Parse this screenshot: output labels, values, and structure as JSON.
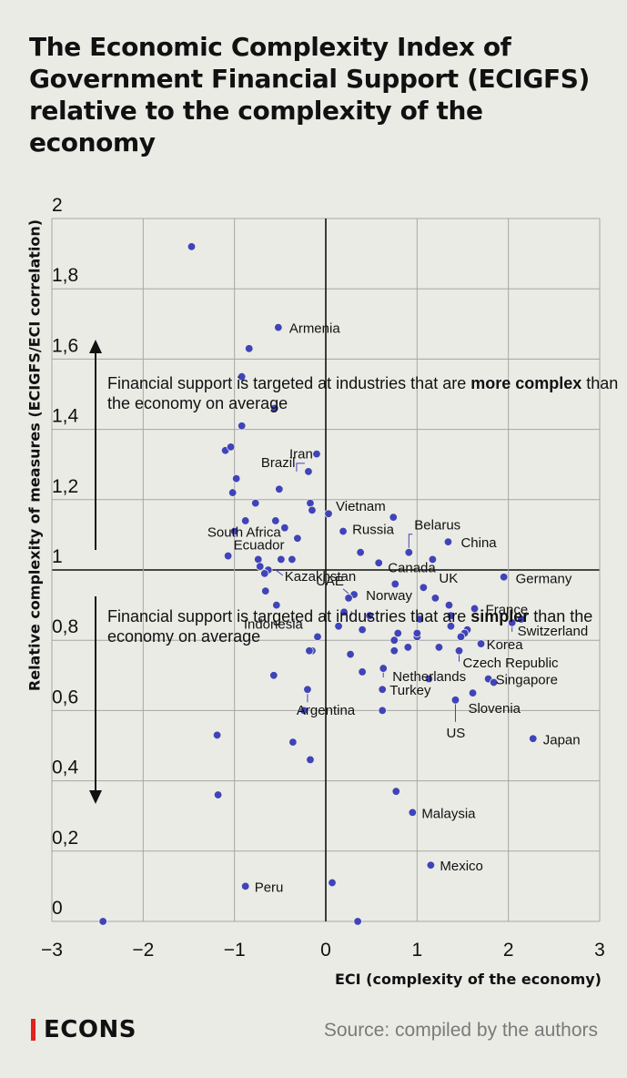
{
  "title": "The Economic Complexity Index of Government Financial Support (ECIGFS) relative to the complexity of the economy",
  "annotations": {
    "upper": {
      "before": "Financial support is targeted at industries that are ",
      "bold": "more complex",
      "after": " than the economy on average"
    },
    "lower": {
      "before": "Financial support is targeted at industries that are ",
      "bold": "simpler",
      "after": " than the economy on average"
    }
  },
  "brand": {
    "name": "ECONS",
    "accent_color": "#e2221c"
  },
  "source": "Source: compiled by the authors",
  "chart_data": {
    "type": "scatter",
    "xlabel": "ECI (complexity of the economy)",
    "ylabel": "Relative complexity of measures (ECIGFS/ECI correlation)",
    "xlim": [
      -3,
      3
    ],
    "ylim": [
      0,
      2
    ],
    "xticks": [
      -3,
      -2,
      -1,
      0,
      1,
      2,
      3
    ],
    "xtick_labels": [
      "−3",
      "−2",
      "−1",
      "0",
      "1",
      "2",
      "3"
    ],
    "yticks": [
      0,
      0.2,
      0.4,
      0.6,
      0.8,
      1,
      1.2,
      1.4,
      1.6,
      1.8,
      2
    ],
    "ytick_labels": [
      "0",
      "0,2",
      "0,4",
      "0,6",
      "0,8",
      "1",
      "1,2",
      "1,4",
      "1,6",
      "1,8",
      "2"
    ],
    "reference_lines": {
      "x": 0,
      "y": 1
    },
    "grid": true,
    "point_color": "#3f44b8",
    "points": [
      {
        "x": -1.47,
        "y": 1.92
      },
      {
        "x": -0.52,
        "y": 1.69,
        "label": "Armenia"
      },
      {
        "x": -0.84,
        "y": 1.63
      },
      {
        "x": -0.92,
        "y": 1.55
      },
      {
        "x": -0.56,
        "y": 1.46
      },
      {
        "x": -0.92,
        "y": 1.41
      },
      {
        "x": -1.1,
        "y": 1.34
      },
      {
        "x": -1.04,
        "y": 1.35
      },
      {
        "x": -0.1,
        "y": 1.33,
        "label": "Iran"
      },
      {
        "x": -0.19,
        "y": 1.28,
        "label": "Brazil"
      },
      {
        "x": -0.98,
        "y": 1.26
      },
      {
        "x": -0.51,
        "y": 1.23
      },
      {
        "x": -1.02,
        "y": 1.22
      },
      {
        "x": -0.77,
        "y": 1.19
      },
      {
        "x": -0.17,
        "y": 1.19
      },
      {
        "x": -0.15,
        "y": 1.17
      },
      {
        "x": 0.03,
        "y": 1.16,
        "label": "Vietnam"
      },
      {
        "x": 0.74,
        "y": 1.15
      },
      {
        "x": -0.88,
        "y": 1.14
      },
      {
        "x": -0.55,
        "y": 1.14
      },
      {
        "x": -0.45,
        "y": 1.12,
        "label": "South Africa"
      },
      {
        "x": -1.0,
        "y": 1.11
      },
      {
        "x": 0.19,
        "y": 1.11,
        "label": "Russia"
      },
      {
        "x": -0.31,
        "y": 1.09
      },
      {
        "x": 1.34,
        "y": 1.08,
        "label": "China"
      },
      {
        "x": 0.38,
        "y": 1.05
      },
      {
        "x": 0.91,
        "y": 1.05,
        "label": "Belarus"
      },
      {
        "x": -1.07,
        "y": 1.04,
        "label": "Ecuador"
      },
      {
        "x": 1.17,
        "y": 1.03
      },
      {
        "x": -0.49,
        "y": 1.03
      },
      {
        "x": -0.37,
        "y": 1.03
      },
      {
        "x": -0.74,
        "y": 1.03
      },
      {
        "x": -0.72,
        "y": 1.01
      },
      {
        "x": 0.58,
        "y": 1.02,
        "label": "Canada"
      },
      {
        "x": -0.63,
        "y": 1.0,
        "label": "Kazakhstan"
      },
      {
        "x": -0.67,
        "y": 0.99
      },
      {
        "x": 1.95,
        "y": 0.98,
        "label": "Germany"
      },
      {
        "x": 0.76,
        "y": 0.96
      },
      {
        "x": 1.07,
        "y": 0.95
      },
      {
        "x": -0.66,
        "y": 0.94
      },
      {
        "x": 0.31,
        "y": 0.93
      },
      {
        "x": 0.25,
        "y": 0.92,
        "label": "UAE"
      },
      {
        "x": 1.2,
        "y": 0.92,
        "label": "UK"
      },
      {
        "x": -0.54,
        "y": 0.9,
        "label": "Indonesia"
      },
      {
        "x": 1.35,
        "y": 0.9
      },
      {
        "x": 1.63,
        "y": 0.89,
        "label": "France"
      },
      {
        "x": 0.2,
        "y": 0.88
      },
      {
        "x": 1.37,
        "y": 0.87
      },
      {
        "x": 0.48,
        "y": 0.87,
        "label": "Norway"
      },
      {
        "x": 1.03,
        "y": 0.86
      },
      {
        "x": 2.14,
        "y": 0.86
      },
      {
        "x": 2.04,
        "y": 0.85,
        "label": "Switzerland"
      },
      {
        "x": 0.14,
        "y": 0.84
      },
      {
        "x": 1.37,
        "y": 0.84
      },
      {
        "x": 1.55,
        "y": 0.83
      },
      {
        "x": 0.4,
        "y": 0.83
      },
      {
        "x": 1.52,
        "y": 0.82
      },
      {
        "x": 0.79,
        "y": 0.82
      },
      {
        "x": 1.0,
        "y": 0.81
      },
      {
        "x": 1.48,
        "y": 0.81
      },
      {
        "x": -0.09,
        "y": 0.81
      },
      {
        "x": 1.0,
        "y": 0.82
      },
      {
        "x": 0.75,
        "y": 0.8
      },
      {
        "x": 1.7,
        "y": 0.79,
        "label": "Korea"
      },
      {
        "x": 0.9,
        "y": 0.78
      },
      {
        "x": 1.24,
        "y": 0.78
      },
      {
        "x": 1.46,
        "y": 0.77,
        "label": "Czech Republic"
      },
      {
        "x": -0.15,
        "y": 0.77
      },
      {
        "x": -0.18,
        "y": 0.77
      },
      {
        "x": 0.27,
        "y": 0.76
      },
      {
        "x": 0.75,
        "y": 0.77
      },
      {
        "x": 0.4,
        "y": 0.71
      },
      {
        "x": 0.63,
        "y": 0.72,
        "label": "Netherlands"
      },
      {
        "x": -0.57,
        "y": 0.7
      },
      {
        "x": 1.13,
        "y": 0.69
      },
      {
        "x": 1.78,
        "y": 0.69,
        "label": "Singapore"
      },
      {
        "x": 1.84,
        "y": 0.68
      },
      {
        "x": -0.2,
        "y": 0.66,
        "label": "Argentina"
      },
      {
        "x": 0.62,
        "y": 0.66,
        "label": "Turkey"
      },
      {
        "x": 1.61,
        "y": 0.65
      },
      {
        "x": 1.42,
        "y": 0.63,
        "label": "US"
      },
      {
        "x": 1.42,
        "y": 0.63,
        "label": "Slovenia"
      },
      {
        "x": -0.24,
        "y": 0.6
      },
      {
        "x": 0.62,
        "y": 0.6
      },
      {
        "x": -1.19,
        "y": 0.53
      },
      {
        "x": 2.27,
        "y": 0.52,
        "label": "Japan"
      },
      {
        "x": -0.36,
        "y": 0.51
      },
      {
        "x": -0.17,
        "y": 0.46
      },
      {
        "x": -1.18,
        "y": 0.36
      },
      {
        "x": 0.77,
        "y": 0.37
      },
      {
        "x": 0.95,
        "y": 0.31,
        "label": "Malaysia"
      },
      {
        "x": 1.15,
        "y": 0.16,
        "label": "Mexico"
      },
      {
        "x": 0.07,
        "y": 0.11
      },
      {
        "x": -0.88,
        "y": 0.1,
        "label": "Peru"
      },
      {
        "x": -2.44,
        "y": 0.0
      },
      {
        "x": 0.35,
        "y": 0.0
      }
    ]
  }
}
